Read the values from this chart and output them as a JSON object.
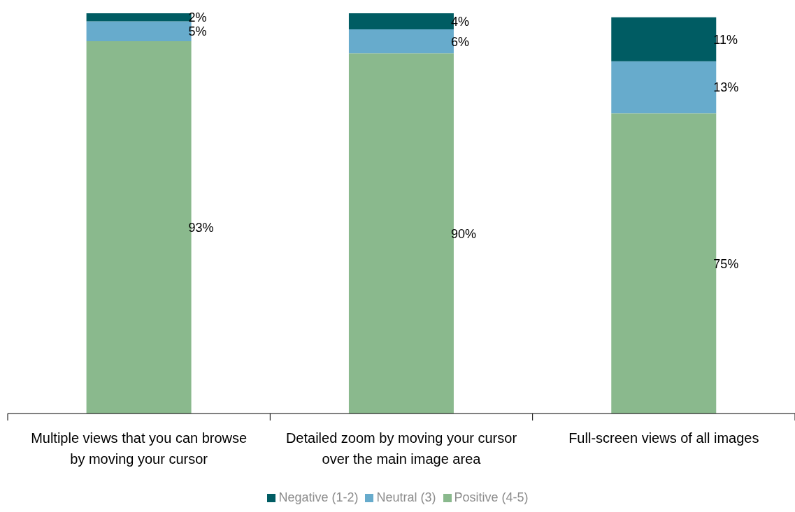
{
  "chart_data": {
    "type": "bar",
    "stacked": true,
    "categories": [
      "Multiple views that you can browse by moving your cursor",
      "Detailed zoom by moving your cursor over the main image area",
      "Full-screen views of all images"
    ],
    "series": [
      {
        "name": "Positive (4-5)",
        "color": "#8ab98d",
        "values": [
          93,
          90,
          75
        ],
        "value_labels": [
          "93%",
          "90%",
          "75%"
        ]
      },
      {
        "name": "Neutral (3)",
        "color": "#67abcc",
        "values": [
          5,
          6,
          13
        ],
        "value_labels": [
          "5%",
          "6%",
          "13%"
        ]
      },
      {
        "name": "Negative (1-2)",
        "color": "#005c63",
        "values": [
          2,
          4,
          11
        ],
        "value_labels": [
          "2%",
          "4%",
          "11%"
        ]
      }
    ],
    "legend": "bottom",
    "grid": false
  }
}
